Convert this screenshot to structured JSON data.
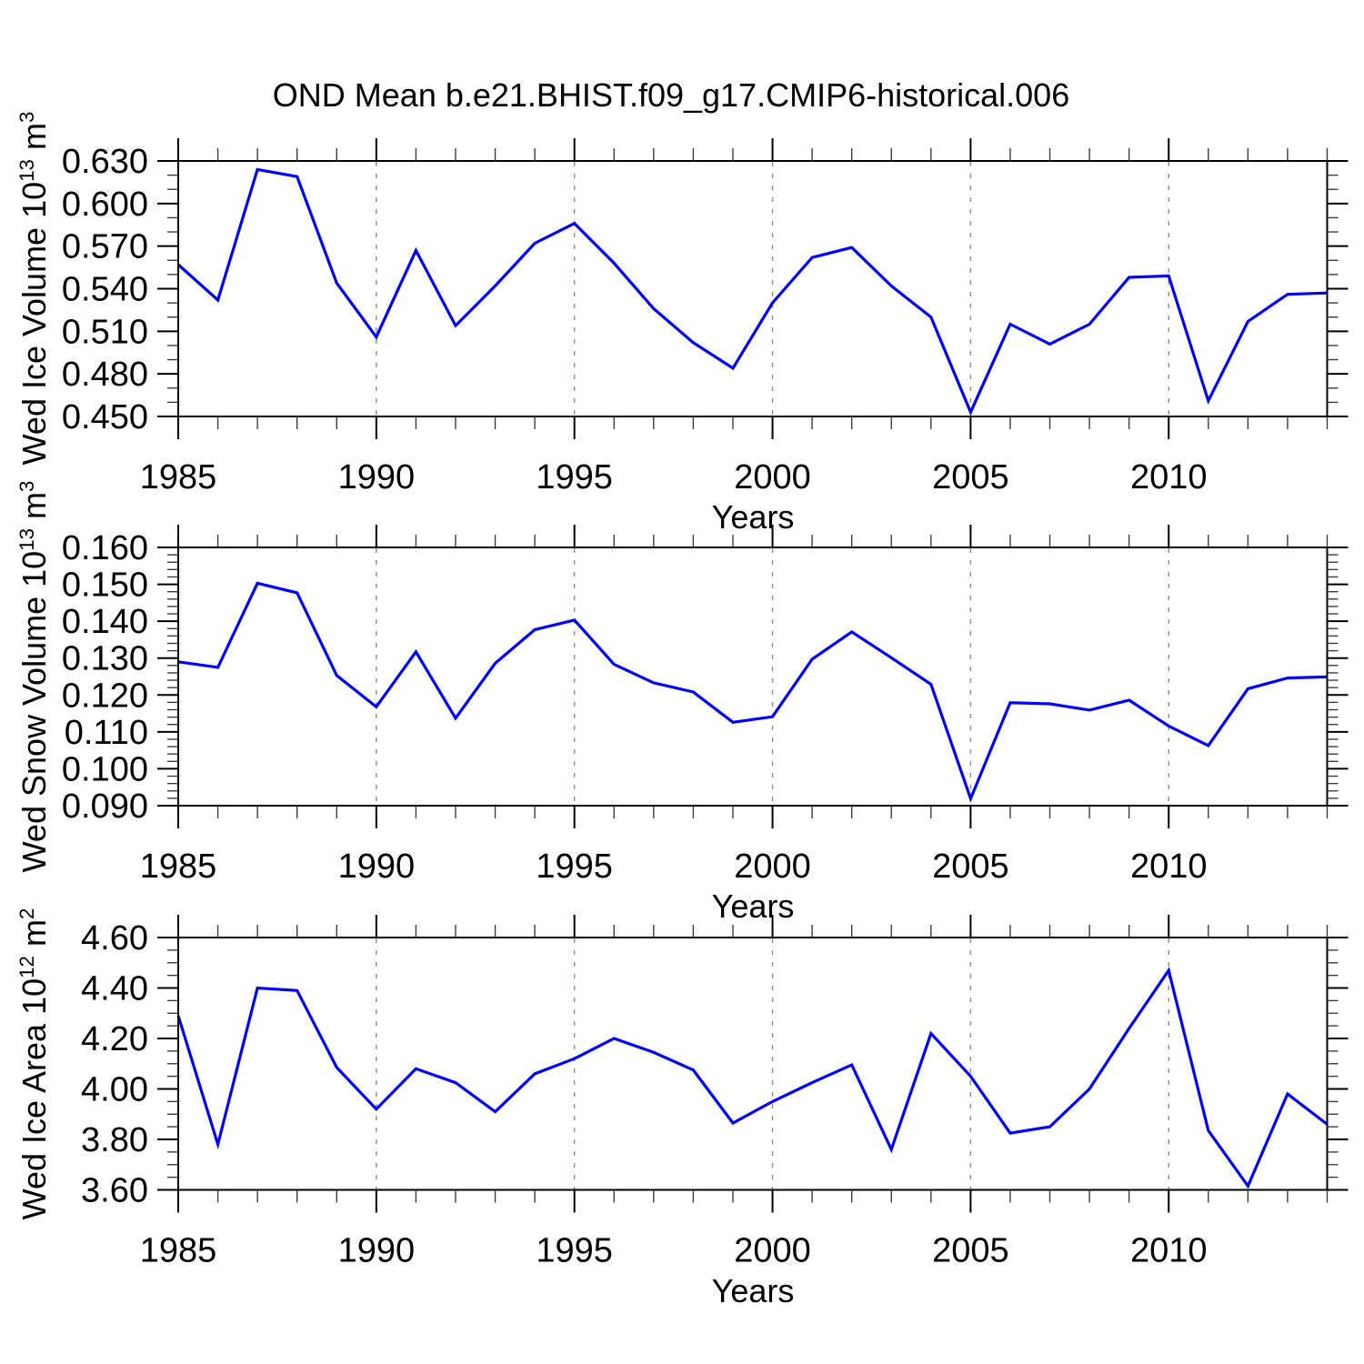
{
  "title": "OND Mean b.e21.BHIST.f09_g17.CMIP6-historical.006",
  "colors": {
    "line": "#0000ff",
    "axis": "#000000",
    "minor_tick": "#3c3c3c",
    "grid": "#8c8c8c",
    "background": "#ffffff"
  },
  "chart_data": [
    {
      "type": "line",
      "name": "ice-volume",
      "ylabel_base": "Wed Ice Volume 10",
      "ylabel_exp": "13",
      "ylabel_unit": " m",
      "ylabel_unit_exp": "3",
      "xlabel": "Years",
      "xlim": [
        1985,
        2014
      ],
      "ylim": [
        0.45,
        0.63
      ],
      "ytick_values": [
        0.45,
        0.48,
        0.51,
        0.54,
        0.57,
        0.6,
        0.63
      ],
      "ytick_labels": [
        "0.450",
        "0.480",
        "0.510",
        "0.540",
        "0.570",
        "0.600",
        "0.630"
      ],
      "y_minor_step": 0.01,
      "xtick_major": [
        1985,
        1990,
        1995,
        2000,
        2005,
        2010
      ],
      "xtick_major_labels": [
        "1985",
        "1990",
        "1995",
        "2000",
        "2005",
        "2010"
      ],
      "x_minor_step": 1,
      "grid_x": [
        1990,
        1995,
        2000,
        2005,
        2010
      ],
      "grid_on": true,
      "legend": "none",
      "x": [
        1985,
        1986,
        1987,
        1988,
        1989,
        1990,
        1991,
        1992,
        1993,
        1994,
        1995,
        1996,
        1997,
        1998,
        1999,
        2000,
        2001,
        2002,
        2003,
        2004,
        2005,
        2006,
        2007,
        2008,
        2009,
        2010,
        2011,
        2012,
        2013,
        2014
      ],
      "values": [
        0.557,
        0.532,
        0.624,
        0.619,
        0.544,
        0.506,
        0.567,
        0.514,
        0.542,
        0.572,
        0.586,
        0.558,
        0.526,
        0.502,
        0.484,
        0.53,
        0.562,
        0.569,
        0.542,
        0.52,
        0.453,
        0.515,
        0.501,
        0.515,
        0.548,
        0.549,
        0.461,
        0.517,
        0.536,
        0.537
      ]
    },
    {
      "type": "line",
      "name": "snow-volume",
      "ylabel_base": "Wed Snow Volume 10",
      "ylabel_exp": "13",
      "ylabel_unit": " m",
      "ylabel_unit_exp": "3",
      "xlabel": "Years",
      "xlim": [
        1985,
        2014
      ],
      "ylim": [
        0.09,
        0.16
      ],
      "ytick_values": [
        0.09,
        0.1,
        0.11,
        0.12,
        0.13,
        0.14,
        0.15,
        0.16
      ],
      "ytick_labels": [
        "0.090",
        "0.100",
        "0.110",
        "0.120",
        "0.130",
        "0.140",
        "0.150",
        "0.160"
      ],
      "y_minor_step": 0.002,
      "xtick_major": [
        1985,
        1990,
        1995,
        2000,
        2005,
        2010
      ],
      "xtick_major_labels": [
        "1985",
        "1990",
        "1995",
        "2000",
        "2005",
        "2010"
      ],
      "x_minor_step": 1,
      "grid_x": [
        1990,
        1995,
        2000,
        2005,
        2010
      ],
      "grid_on": true,
      "legend": "none",
      "x": [
        1985,
        1986,
        1987,
        1988,
        1989,
        1990,
        1991,
        1992,
        1993,
        1994,
        1995,
        1996,
        1997,
        1998,
        1999,
        2000,
        2001,
        2002,
        2003,
        2004,
        2005,
        2006,
        2007,
        2008,
        2009,
        2010,
        2011,
        2012,
        2013,
        2014
      ],
      "values": [
        0.129,
        0.1275,
        0.1503,
        0.1477,
        0.1253,
        0.1168,
        0.1317,
        0.1137,
        0.1286,
        0.1377,
        0.1403,
        0.1283,
        0.1233,
        0.1208,
        0.1126,
        0.1141,
        0.1297,
        0.1371,
        0.1301,
        0.1229,
        0.0919,
        0.1179,
        0.1176,
        0.1159,
        0.1186,
        0.1116,
        0.1063,
        0.1217,
        0.1246,
        0.1249
      ]
    },
    {
      "type": "line",
      "name": "ice-area",
      "ylabel_base": "Wed Ice Area 10",
      "ylabel_exp": "12",
      "ylabel_unit": " m",
      "ylabel_unit_exp": "2",
      "xlabel": "Years",
      "xlim": [
        1985,
        2014
      ],
      "ylim": [
        3.6,
        4.6
      ],
      "ytick_values": [
        3.6,
        3.8,
        4.0,
        4.2,
        4.4,
        4.6
      ],
      "ytick_labels": [
        "3.60",
        "3.80",
        "4.00",
        "4.20",
        "4.40",
        "4.60"
      ],
      "y_minor_step": 0.05,
      "xtick_major": [
        1985,
        1990,
        1995,
        2000,
        2005,
        2010
      ],
      "xtick_major_labels": [
        "1985",
        "1990",
        "1995",
        "2000",
        "2005",
        "2010"
      ],
      "x_minor_step": 1,
      "grid_x": [
        1990,
        1995,
        2000,
        2005,
        2010
      ],
      "grid_on": true,
      "legend": "none",
      "x": [
        1985,
        1986,
        1987,
        1988,
        1989,
        1990,
        1991,
        1992,
        1993,
        1994,
        1995,
        1996,
        1997,
        1998,
        1999,
        2000,
        2001,
        2002,
        2003,
        2004,
        2005,
        2006,
        2007,
        2008,
        2009,
        2010,
        2011,
        2012,
        2013,
        2014
      ],
      "values": [
        4.29,
        3.78,
        4.4,
        4.39,
        4.085,
        3.92,
        4.08,
        4.025,
        3.91,
        4.06,
        4.12,
        4.2,
        4.145,
        4.075,
        3.865,
        3.95,
        4.025,
        4.095,
        3.76,
        4.22,
        4.05,
        3.825,
        3.85,
        4.0,
        4.24,
        4.47,
        3.835,
        3.615,
        3.98,
        3.86
      ]
    }
  ]
}
